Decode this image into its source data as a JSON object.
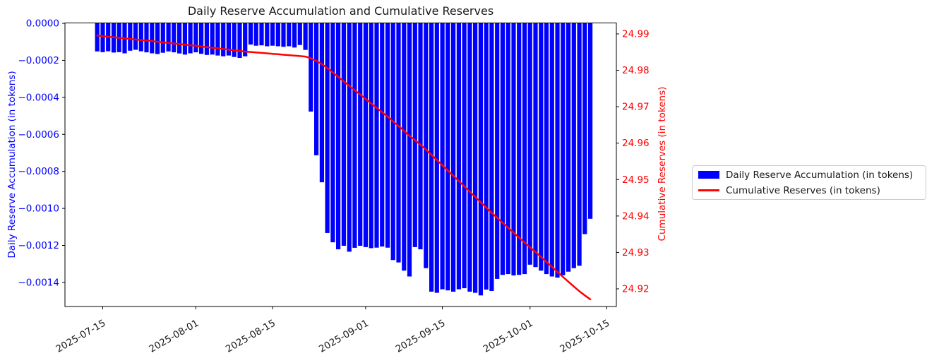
{
  "chart_data": {
    "type": "bar+line",
    "title": "Daily Reserve Accumulation and Cumulative Reserves",
    "background": "#ffffff",
    "grid": false,
    "legend_position": "outside-right",
    "x_start_date": "2025-07-14",
    "x_freq": "daily",
    "n_points": 91,
    "x_ticks": [
      "2025-07-15",
      "2025-08-01",
      "2025-08-15",
      "2025-09-01",
      "2025-09-15",
      "2025-10-01",
      "2025-10-15"
    ],
    "y_left": {
      "label": "Daily Reserve Accumulation (in tokens)",
      "color": "#0000ff",
      "lim": [
        -0.00153,
        0.0
      ],
      "ticks": [
        {
          "v": 0.0,
          "label": "0.0000"
        },
        {
          "v": -0.0002,
          "label": "−0.0002"
        },
        {
          "v": -0.0004,
          "label": "−0.0004"
        },
        {
          "v": -0.0006,
          "label": "−0.0006"
        },
        {
          "v": -0.0008,
          "label": "−0.0008"
        },
        {
          "v": -0.001,
          "label": "−0.0010"
        },
        {
          "v": -0.0012,
          "label": "−0.0012"
        },
        {
          "v": -0.0014,
          "label": "−0.0014"
        }
      ]
    },
    "y_right": {
      "label": "Cumulative Reserves (in tokens)",
      "color": "#ff0000",
      "lim": [
        24.91515,
        24.99291
      ],
      "ticks": [
        {
          "v": 24.99,
          "label": "24.99"
        },
        {
          "v": 24.98,
          "label": "24.98"
        },
        {
          "v": 24.97,
          "label": "24.97"
        },
        {
          "v": 24.96,
          "label": "24.96"
        },
        {
          "v": 24.95,
          "label": "24.95"
        },
        {
          "v": 24.94,
          "label": "24.94"
        },
        {
          "v": 24.93,
          "label": "24.93"
        },
        {
          "v": 24.92,
          "label": "24.92"
        }
      ]
    },
    "series": [
      {
        "name": "Daily Reserve Accumulation (in tokens)",
        "type": "bar",
        "axis": "left",
        "color": "#0000ff",
        "values": [
          -0.000152,
          -0.000156,
          -0.000151,
          -0.000158,
          -0.000156,
          -0.000162,
          -0.000148,
          -0.000143,
          -0.000151,
          -0.000157,
          -0.000162,
          -0.000166,
          -0.000159,
          -0.000152,
          -0.000157,
          -0.000163,
          -0.000169,
          -0.000162,
          -0.000157,
          -0.000165,
          -0.000171,
          -0.000169,
          -0.000174,
          -0.000178,
          -0.000174,
          -0.000182,
          -0.000187,
          -0.000178,
          -0.000115,
          -0.000121,
          -0.000119,
          -0.000124,
          -0.000121,
          -0.000124,
          -0.000127,
          -0.000124,
          -0.000131,
          -0.000117,
          -0.000144,
          -0.000477,
          -0.000713,
          -0.000859,
          -0.001133,
          -0.001183,
          -0.001221,
          -0.001202,
          -0.001234,
          -0.001213,
          -0.001202,
          -0.001209,
          -0.001215,
          -0.001212,
          -0.001206,
          -0.001212,
          -0.001279,
          -0.001292,
          -0.001336,
          -0.001368,
          -0.001209,
          -0.001221,
          -0.001323,
          -0.00145,
          -0.001456,
          -0.001437,
          -0.001443,
          -0.00145,
          -0.001437,
          -0.001431,
          -0.00145,
          -0.001456,
          -0.00147,
          -0.001439,
          -0.001446,
          -0.001381,
          -0.001359,
          -0.001355,
          -0.001362,
          -0.001359,
          -0.001355,
          -0.001304,
          -0.001317,
          -0.001336,
          -0.001355,
          -0.001368,
          -0.001374,
          -0.001361,
          -0.001342,
          -0.001323,
          -0.00131,
          -0.001139,
          -0.001056
        ]
      },
      {
        "name": "Cumulative Reserves (in tokens)",
        "type": "line",
        "axis": "right",
        "color": "#ff0000",
        "values": [
          24.98955,
          24.98939,
          24.98924,
          24.98908,
          24.98893,
          24.98877,
          24.98862,
          24.98847,
          24.98832,
          24.98817,
          24.988,
          24.98784,
          24.98768,
          24.98753,
          24.98737,
          24.98721,
          24.98704,
          24.98688,
          24.98672,
          24.98655,
          24.98638,
          24.98621,
          24.98604,
          24.98586,
          24.98569,
          24.98551,
          24.98532,
          24.98514,
          24.98503,
          24.9849,
          24.98479,
          24.98466,
          24.98454,
          24.98442,
          24.98429,
          24.98417,
          24.98404,
          24.98392,
          24.98377,
          24.9833,
          24.98258,
          24.98173,
          24.98059,
          24.97941,
          24.97819,
          24.97699,
          24.97575,
          24.97454,
          24.97334,
          24.97213,
          24.97091,
          24.9697,
          24.9685,
          24.96728,
          24.966,
          24.96471,
          24.96338,
          24.96201,
          24.9608,
          24.95958,
          24.95826,
          24.95681,
          24.95535,
          24.95391,
          24.95247,
          24.95102,
          24.94958,
          24.94815,
          24.9467,
          24.94525,
          24.94378,
          24.94234,
          24.94089,
          24.93951,
          24.93815,
          24.9368,
          24.93543,
          24.93407,
          24.93272,
          24.93142,
          24.9301,
          24.92876,
          24.92741,
          24.92604,
          24.92467,
          24.9233,
          24.92196,
          24.92064,
          24.91933,
          24.91819,
          24.91713
        ]
      }
    ]
  },
  "legend": {
    "items": [
      {
        "label": "Daily Reserve Accumulation (in tokens)",
        "color": "#0000ff",
        "kind": "patch"
      },
      {
        "label": "Cumulative Reserves (in tokens)",
        "color": "#ff0000",
        "kind": "line"
      }
    ]
  }
}
